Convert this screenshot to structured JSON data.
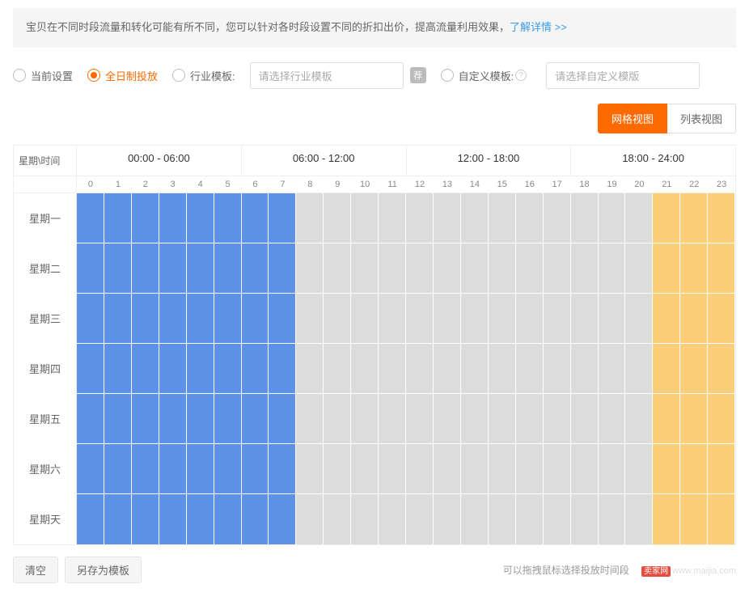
{
  "banner": {
    "text": "宝贝在不同时段流量和转化可能有所不同，您可以针对各时段设置不同的折扣出价，提高流量利用效果，",
    "link": "了解详情 >>"
  },
  "options": {
    "current": "当前设置",
    "fullday": "全日制投放",
    "industry_label": "行业模板:",
    "industry_placeholder": "请选择行业模板",
    "badge": "荐",
    "custom_label": "自定义模板:",
    "custom_placeholder": "请选择自定义模版",
    "help": "?",
    "selected": "fullday"
  },
  "view_toggle": {
    "grid": "网格视图",
    "list": "列表视图",
    "active": "grid"
  },
  "grid": {
    "corner": "星期\\时间",
    "time_ranges": [
      "00:00 - 06:00",
      "06:00 - 12:00",
      "12:00 - 18:00",
      "18:00 - 24:00"
    ],
    "hours": [
      "0",
      "1",
      "2",
      "3",
      "4",
      "5",
      "6",
      "7",
      "8",
      "9",
      "10",
      "11",
      "12",
      "13",
      "14",
      "15",
      "16",
      "17",
      "18",
      "19",
      "20",
      "21",
      "22",
      "23"
    ],
    "days": [
      "星期一",
      "星期二",
      "星期三",
      "星期四",
      "星期五",
      "星期六",
      "星期天"
    ],
    "colors": {
      "blue": "#5d92e7",
      "gray": "#dcdcdc",
      "orange": "#fbce7a"
    },
    "blue_range": [
      0,
      7
    ],
    "orange_range": [
      21,
      23
    ]
  },
  "footer": {
    "clear": "清空",
    "save_as": "另存为模板",
    "hint": "可以拖拽鼠标选择投放时间段",
    "watermark_badge": "卖家网",
    "watermark_url": "www.maijia.com"
  }
}
